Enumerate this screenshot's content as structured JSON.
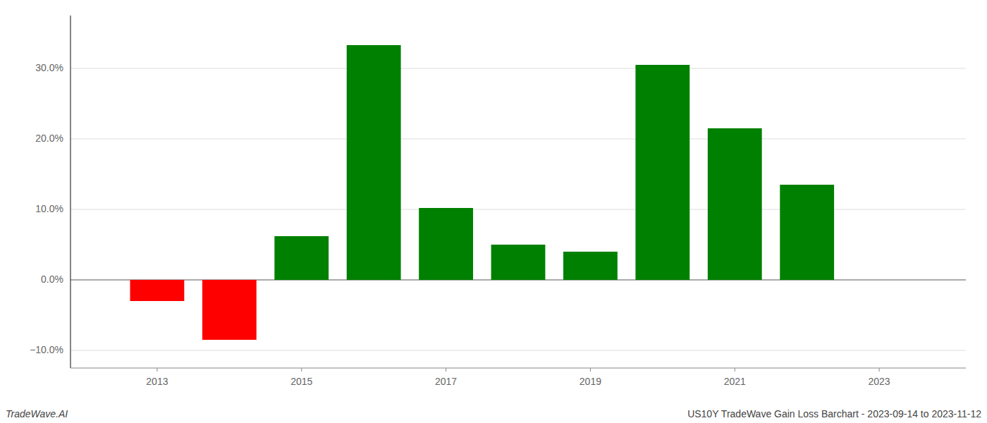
{
  "chart_data": {
    "type": "bar",
    "x": [
      2013,
      2014,
      2015,
      2016,
      2017,
      2018,
      2019,
      2020,
      2021,
      2022
    ],
    "values": [
      -0.03,
      -0.085,
      0.062,
      0.333,
      0.102,
      0.05,
      0.04,
      0.305,
      0.215,
      0.135
    ],
    "colors": [
      "#ff0000",
      "#ff0000",
      "#008000",
      "#008000",
      "#008000",
      "#008000",
      "#008000",
      "#008000",
      "#008000",
      "#008000"
    ],
    "xlim": [
      2011.8,
      2024.2
    ],
    "xticks": [
      2013,
      2015,
      2017,
      2019,
      2021,
      2023
    ],
    "ylim": [
      -0.125,
      0.375
    ],
    "yticks": [
      {
        "value": -0.1,
        "label": "−10.0%"
      },
      {
        "value": 0.0,
        "label": "0.0%"
      },
      {
        "value": 0.1,
        "label": "10.0%"
      },
      {
        "value": 0.2,
        "label": "20.0%"
      },
      {
        "value": 0.3,
        "label": "30.0%"
      }
    ],
    "grid": true,
    "annotations": [
      "TradeWave.AI",
      "US10Y TradeWave Gain Loss Barchart - 2023-09-14 to 2023-11-12"
    ]
  }
}
